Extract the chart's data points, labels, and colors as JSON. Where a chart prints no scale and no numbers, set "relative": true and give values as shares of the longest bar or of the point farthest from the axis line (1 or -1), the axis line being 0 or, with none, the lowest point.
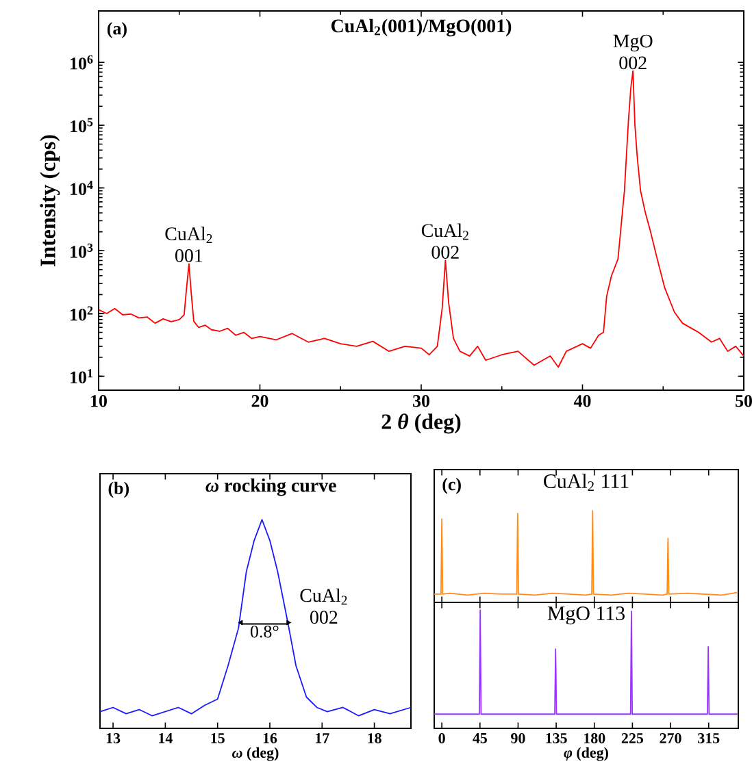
{
  "chart_data": [
    {
      "type": "line",
      "title": "**CuAl$_{2}$(001)/MgO(001)**",
      "xlabel": "2 *θ* (deg)",
      "ylabel": "Intensity (cps)",
      "log": "y",
      "xlim": [
        10,
        50
      ],
      "xticks": [
        10,
        20,
        30,
        40,
        50
      ],
      "ylim": [
        6,
        6600000
      ],
      "yticks": [
        {
          "value": 10,
          "label": "10$^{1}$"
        },
        {
          "value": 100,
          "label": "10$^{2}$"
        },
        {
          "value": 1000,
          "label": "10$^{3}$"
        },
        {
          "value": 10000,
          "label": "10$^{4}$"
        },
        {
          "value": 100000,
          "label": "10$^{5}$"
        },
        {
          "value": 1000000,
          "label": "10$^{6}$"
        }
      ],
      "annotations": [
        "(a)",
        {
          "text": "CuAl$_{2}$ 001",
          "x": 15.6,
          "y": 620
        },
        {
          "text": "CuAl$_{2}$ 002",
          "x": 31.5,
          "y": 700
        },
        {
          "text": "MgO 002",
          "x": 43.13,
          "y": 730000
        }
      ],
      "series": [
        {
          "color": "#ff0000",
          "x": [
            10,
            10.5,
            11,
            11.5,
            12,
            12.5,
            13,
            13.5,
            14,
            14.5,
            15,
            15.3,
            15.45,
            15.6,
            15.75,
            15.9,
            16.2,
            16.6,
            17,
            17.5,
            18,
            18.5,
            19,
            19.5,
            20,
            21,
            22,
            23,
            24,
            25,
            26,
            27,
            28,
            29,
            30,
            30.5,
            31,
            31.3,
            31.5,
            31.7,
            32,
            32.4,
            33,
            33.5,
            34,
            35,
            36,
            37,
            38,
            38.5,
            39,
            40,
            40.5,
            41,
            41.3,
            41.5,
            41.8,
            42.2,
            42.6,
            42.85,
            43.0,
            43.13,
            43.25,
            43.4,
            43.6,
            43.9,
            44.2,
            44.6,
            45.1,
            45.7,
            46.2,
            47.2,
            48,
            48.5,
            49,
            49.5,
            50
          ],
          "values": [
            115,
            100,
            120,
            95,
            98,
            85,
            88,
            70,
            82,
            74,
            80,
            95,
            250,
            620,
            200,
            75,
            60,
            65,
            55,
            52,
            58,
            45,
            50,
            40,
            43,
            38,
            48,
            35,
            40,
            33,
            30,
            36,
            25,
            30,
            28,
            22,
            30,
            120,
            700,
            150,
            40,
            25,
            21,
            30,
            18,
            22,
            25,
            15,
            21,
            14,
            25,
            33,
            28,
            45,
            50,
            190,
            400,
            740,
            9000,
            120000,
            400000,
            730000,
            100000,
            30000,
            9000,
            4000,
            2100,
            800,
            255,
            105,
            70,
            50,
            35,
            40,
            25,
            30,
            21
          ]
        }
      ]
    },
    {
      "type": "line",
      "title": "*ω* rocking curve",
      "xlabel": "*ω* (deg)",
      "relative": true,
      "xlim": [
        12.75,
        18.7
      ],
      "xticks": [
        13,
        14,
        15,
        16,
        17,
        18
      ],
      "annotations": [
        "(b)",
        "CuAl$_{2}$ 002",
        {
          "text": "0.8°",
          "x": 15.9,
          "y": 0.5
        }
      ],
      "series": [
        {
          "color": "#1a1aff",
          "x": [
            12.75,
            13,
            13.25,
            13.5,
            13.75,
            14,
            14.25,
            14.5,
            14.75,
            15,
            15.2,
            15.4,
            15.55,
            15.7,
            15.85,
            16,
            16.15,
            16.35,
            16.5,
            16.7,
            16.9,
            17.1,
            17.4,
            17.7,
            18,
            18.3,
            18.7
          ],
          "values": [
            0.08,
            0.1,
            0.07,
            0.09,
            0.06,
            0.08,
            0.1,
            0.07,
            0.11,
            0.14,
            0.3,
            0.48,
            0.75,
            0.9,
            1.0,
            0.9,
            0.75,
            0.5,
            0.3,
            0.15,
            0.1,
            0.08,
            0.1,
            0.06,
            0.09,
            0.07,
            0.1
          ]
        },
        {
          "color": "#000000",
          "marker": "triangle",
          "x": [
            15.45,
            16.35
          ],
          "values": [
            0.5,
            0.5
          ]
        }
      ]
    },
    {
      "type": "line",
      "title": "CuAl$_{2}$ 111",
      "relative": true,
      "tick_labels": false,
      "xlim": [
        -9,
        350
      ],
      "xticks": [
        0,
        45,
        90,
        135,
        180,
        225,
        270,
        315
      ],
      "annotations": [
        "(c)"
      ],
      "series": [
        {
          "color": "#ff8c1a",
          "x": [
            -9,
            -1,
            0,
            1,
            10,
            30,
            50,
            70,
            88.5,
            89.5,
            90.5,
            110,
            130,
            150,
            170,
            177,
            178,
            179,
            200,
            220,
            240,
            260,
            266,
            267,
            268,
            290,
            310,
            330,
            350
          ],
          "values": [
            0.09,
            0.09,
            0.91,
            0.09,
            0.1,
            0.08,
            0.1,
            0.09,
            0.09,
            0.97,
            0.09,
            0.08,
            0.1,
            0.09,
            0.08,
            0.09,
            1.0,
            0.09,
            0.08,
            0.1,
            0.09,
            0.08,
            0.09,
            0.7,
            0.09,
            0.1,
            0.09,
            0.08,
            0.11
          ]
        }
      ]
    },
    {
      "type": "line",
      "title": "MgO 113",
      "xlabel": "*φ* (deg)",
      "relative": true,
      "tick_labels": "x",
      "xlim": [
        -9,
        350
      ],
      "xticks": [
        0,
        45,
        90,
        135,
        180,
        225,
        270,
        315
      ],
      "series": [
        {
          "color": "#9933ff",
          "x": [
            -9,
            44.3,
            45.3,
            46.3,
            133.3,
            134.3,
            135.3,
            222.8,
            223.8,
            224.8,
            313.5,
            314.5,
            315.5,
            350
          ],
          "values": [
            0.12,
            0.12,
            1.0,
            0.12,
            0.12,
            0.67,
            0.12,
            0.12,
            0.99,
            0.12,
            0.12,
            0.69,
            0.12,
            0.12
          ]
        }
      ]
    }
  ]
}
